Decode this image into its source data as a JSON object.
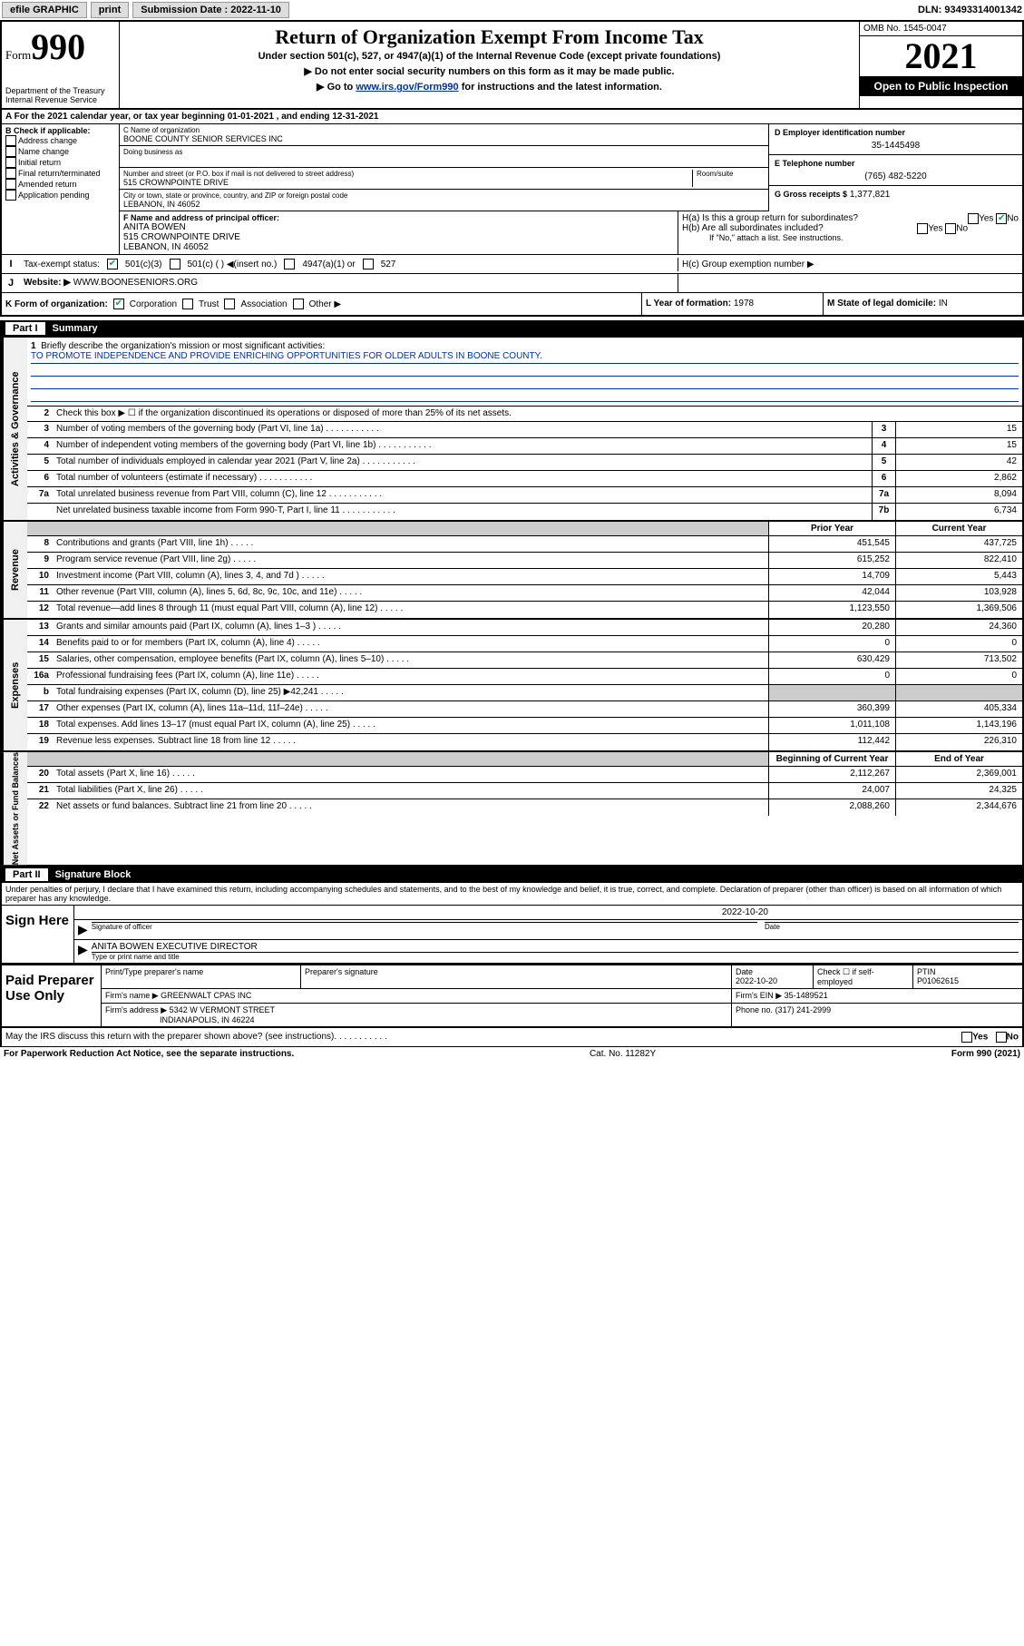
{
  "toolbar": {
    "efile": "efile GRAPHIC",
    "print": "print",
    "sub_label": "Submission Date : 2022-11-10",
    "dln": "DLN: 93493314001342"
  },
  "header": {
    "form_word": "Form",
    "form_num": "990",
    "dept": "Department of the Treasury",
    "irs": "Internal Revenue Service",
    "title": "Return of Organization Exempt From Income Tax",
    "sub1": "Under section 501(c), 527, or 4947(a)(1) of the Internal Revenue Code (except private foundations)",
    "sub2": "▶ Do not enter social security numbers on this form as it may be made public.",
    "sub3_pre": "▶ Go to ",
    "sub3_link": "www.irs.gov/Form990",
    "sub3_post": " for instructions and the latest information.",
    "omb": "OMB No. 1545-0047",
    "year": "2021",
    "open": "Open to Public Inspection"
  },
  "row_a": "A For the 2021 calendar year, or tax year beginning 01-01-2021   , and ending 12-31-2021",
  "col_b": {
    "label": "B Check if applicable:",
    "items": [
      "Address change",
      "Name change",
      "Initial return",
      "Final return/terminated",
      "Amended return",
      "Application pending"
    ]
  },
  "col_c": {
    "name_label": "C Name of organization",
    "name": "BOONE COUNTY SENIOR SERVICES INC",
    "dba_label": "Doing business as",
    "street_label": "Number and street (or P.O. box if mail is not delivered to street address)",
    "room_label": "Room/suite",
    "street": "515 CROWNPOINTE DRIVE",
    "city_label": "City or town, state or province, country, and ZIP or foreign postal code",
    "city": "LEBANON, IN  46052"
  },
  "col_d": {
    "ein_label": "D Employer identification number",
    "ein": "35-1445498",
    "phone_label": "E Telephone number",
    "phone": "(765) 482-5220",
    "gross_label": "G Gross receipts $",
    "gross": "1,377,821"
  },
  "officer": {
    "label": "F Name and address of principal officer:",
    "name": "ANITA BOWEN",
    "street": "515 CROWNPOINTE DRIVE",
    "city": "LEBANON, IN  46052"
  },
  "h": {
    "a_label": "H(a)  Is this a group return for subordinates?",
    "a_yes": "Yes",
    "a_no": "No",
    "b_label": "H(b)  Are all subordinates included?",
    "b_yes": "Yes",
    "b_no": "No",
    "b_note": "If \"No,\" attach a list. See instructions.",
    "c_label": "H(c)  Group exemption number ▶"
  },
  "status": {
    "label": "Tax-exempt status:",
    "opts": [
      "501(c)(3)",
      "501(c) (  ) ◀(insert no.)",
      "4947(a)(1) or",
      "527"
    ]
  },
  "website": {
    "label": "Website: ▶",
    "value": "WWW.BOONESENIORS.ORG"
  },
  "k": {
    "label": "K Form of organization:",
    "opts": [
      "Corporation",
      "Trust",
      "Association",
      "Other ▶"
    ],
    "l_label": "L Year of formation:",
    "l_val": "1978",
    "m_label": "M State of legal domicile:",
    "m_val": "IN"
  },
  "part1": {
    "num": "Part I",
    "title": "Summary"
  },
  "mission": {
    "num": "1",
    "label": "Briefly describe the organization's mission or most significant activities:",
    "text": "TO PROMOTE INDEPENDENCE AND PROVIDE ENRICHING OPPORTUNITIES FOR OLDER ADULTS IN BOONE COUNTY."
  },
  "governance": {
    "side": "Activities & Governance",
    "row2": "Check this box ▶ ☐  if the organization discontinued its operations or disposed of more than 25% of its net assets.",
    "rows": [
      {
        "n": "3",
        "desc": "Number of voting members of the governing body (Part VI, line 1a)",
        "box": "3",
        "val": "15"
      },
      {
        "n": "4",
        "desc": "Number of independent voting members of the governing body (Part VI, line 1b)",
        "box": "4",
        "val": "15"
      },
      {
        "n": "5",
        "desc": "Total number of individuals employed in calendar year 2021 (Part V, line 2a)",
        "box": "5",
        "val": "42"
      },
      {
        "n": "6",
        "desc": "Total number of volunteers (estimate if necessary)",
        "box": "6",
        "val": "2,862"
      },
      {
        "n": "7a",
        "desc": "Total unrelated business revenue from Part VIII, column (C), line 12",
        "box": "7a",
        "val": "8,094"
      },
      {
        "n": "",
        "desc": "Net unrelated business taxable income from Form 990-T, Part I, line 11",
        "box": "7b",
        "val": "6,734"
      }
    ]
  },
  "revenue": {
    "side": "Revenue",
    "header_prior": "Prior Year",
    "header_current": "Current Year",
    "rows": [
      {
        "n": "8",
        "desc": "Contributions and grants (Part VIII, line 1h)",
        "prior": "451,545",
        "curr": "437,725"
      },
      {
        "n": "9",
        "desc": "Program service revenue (Part VIII, line 2g)",
        "prior": "615,252",
        "curr": "822,410"
      },
      {
        "n": "10",
        "desc": "Investment income (Part VIII, column (A), lines 3, 4, and 7d )",
        "prior": "14,709",
        "curr": "5,443"
      },
      {
        "n": "11",
        "desc": "Other revenue (Part VIII, column (A), lines 5, 6d, 8c, 9c, 10c, and 11e)",
        "prior": "42,044",
        "curr": "103,928"
      },
      {
        "n": "12",
        "desc": "Total revenue—add lines 8 through 11 (must equal Part VIII, column (A), line 12)",
        "prior": "1,123,550",
        "curr": "1,369,506"
      }
    ]
  },
  "expenses": {
    "side": "Expenses",
    "rows": [
      {
        "n": "13",
        "desc": "Grants and similar amounts paid (Part IX, column (A), lines 1–3 )",
        "prior": "20,280",
        "curr": "24,360"
      },
      {
        "n": "14",
        "desc": "Benefits paid to or for members (Part IX, column (A), line 4)",
        "prior": "0",
        "curr": "0"
      },
      {
        "n": "15",
        "desc": "Salaries, other compensation, employee benefits (Part IX, column (A), lines 5–10)",
        "prior": "630,429",
        "curr": "713,502"
      },
      {
        "n": "16a",
        "desc": "Professional fundraising fees (Part IX, column (A), line 11e)",
        "prior": "0",
        "curr": "0"
      },
      {
        "n": "b",
        "desc": "Total fundraising expenses (Part IX, column (D), line 25) ▶42,241",
        "prior": "",
        "curr": "",
        "gray": true
      },
      {
        "n": "17",
        "desc": "Other expenses (Part IX, column (A), lines 11a–11d, 11f–24e)",
        "prior": "360,399",
        "curr": "405,334"
      },
      {
        "n": "18",
        "desc": "Total expenses. Add lines 13–17 (must equal Part IX, column (A), line 25)",
        "prior": "1,011,108",
        "curr": "1,143,196"
      },
      {
        "n": "19",
        "desc": "Revenue less expenses. Subtract line 18 from line 12",
        "prior": "112,442",
        "curr": "226,310"
      }
    ]
  },
  "netassets": {
    "side": "Net Assets or Fund Balances",
    "header_begin": "Beginning of Current Year",
    "header_end": "End of Year",
    "rows": [
      {
        "n": "20",
        "desc": "Total assets (Part X, line 16)",
        "begin": "2,112,267",
        "end": "2,369,001"
      },
      {
        "n": "21",
        "desc": "Total liabilities (Part X, line 26)",
        "begin": "24,007",
        "end": "24,325"
      },
      {
        "n": "22",
        "desc": "Net assets or fund balances. Subtract line 21 from line 20",
        "begin": "2,088,260",
        "end": "2,344,676"
      }
    ]
  },
  "part2": {
    "num": "Part II",
    "title": "Signature Block"
  },
  "penalty": "Under penalties of perjury, I declare that I have examined this return, including accompanying schedules and statements, and to the best of my knowledge and belief, it is true, correct, and complete. Declaration of preparer (other than officer) is based on all information of which preparer has any knowledge.",
  "sign": {
    "label": "Sign Here",
    "sig_label": "Signature of officer",
    "date_label": "Date",
    "date": "2022-10-20",
    "name": "ANITA BOWEN  EXECUTIVE DIRECTOR",
    "name_label": "Type or print name and title"
  },
  "preparer": {
    "label": "Paid Preparer Use Only",
    "name_label": "Print/Type preparer's name",
    "sig_label": "Preparer's signature",
    "date_label": "Date",
    "date": "2022-10-20",
    "check_label": "Check ☐ if self-employed",
    "ptin_label": "PTIN",
    "ptin": "P01062615",
    "firm_name_label": "Firm's name    ▶",
    "firm_name": "GREENWALT CPAS INC",
    "firm_ein_label": "Firm's EIN ▶",
    "firm_ein": "35-1489521",
    "firm_addr_label": "Firm's address ▶",
    "firm_addr1": "5342 W VERMONT STREET",
    "firm_addr2": "INDIANAPOLIS, IN  46224",
    "phone_label": "Phone no.",
    "phone": "(317) 241-2999"
  },
  "discuss": {
    "text": "May the IRS discuss this return with the preparer shown above? (see instructions)",
    "yes": "Yes",
    "no": "No"
  },
  "footer": {
    "left": "For Paperwork Reduction Act Notice, see the separate instructions.",
    "mid": "Cat. No. 11282Y",
    "right": "Form 990 (2021)"
  }
}
